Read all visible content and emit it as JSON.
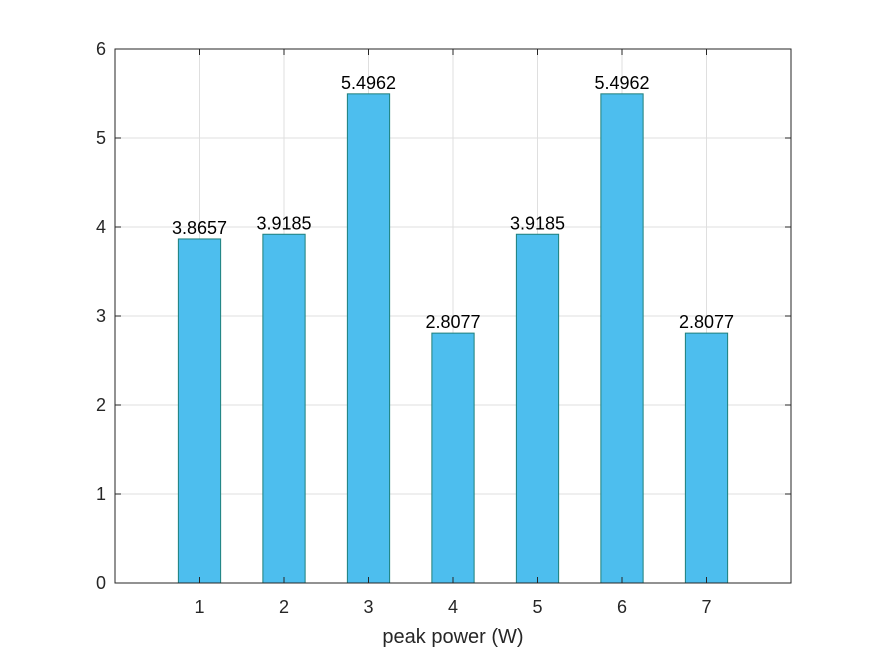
{
  "chart_data": {
    "type": "bar",
    "categories": [
      "1",
      "2",
      "3",
      "4",
      "5",
      "6",
      "7"
    ],
    "values": [
      3.8657,
      3.9185,
      5.4962,
      2.8077,
      3.9185,
      5.4962,
      2.8077
    ],
    "data_labels": [
      "3.8657",
      "3.9185",
      "5.4962",
      "2.8077",
      "3.9185",
      "5.4962",
      "2.8077"
    ],
    "title": "",
    "xlabel": "peak power (W)",
    "ylabel": "",
    "xlim": [
      0,
      8
    ],
    "ylim": [
      0,
      6
    ],
    "yticks": [
      "0",
      "1",
      "2",
      "3",
      "4",
      "5",
      "6"
    ],
    "grid": true,
    "bar_color": "#4DBEEE",
    "bar_edge_color": "#1E7F7A"
  }
}
